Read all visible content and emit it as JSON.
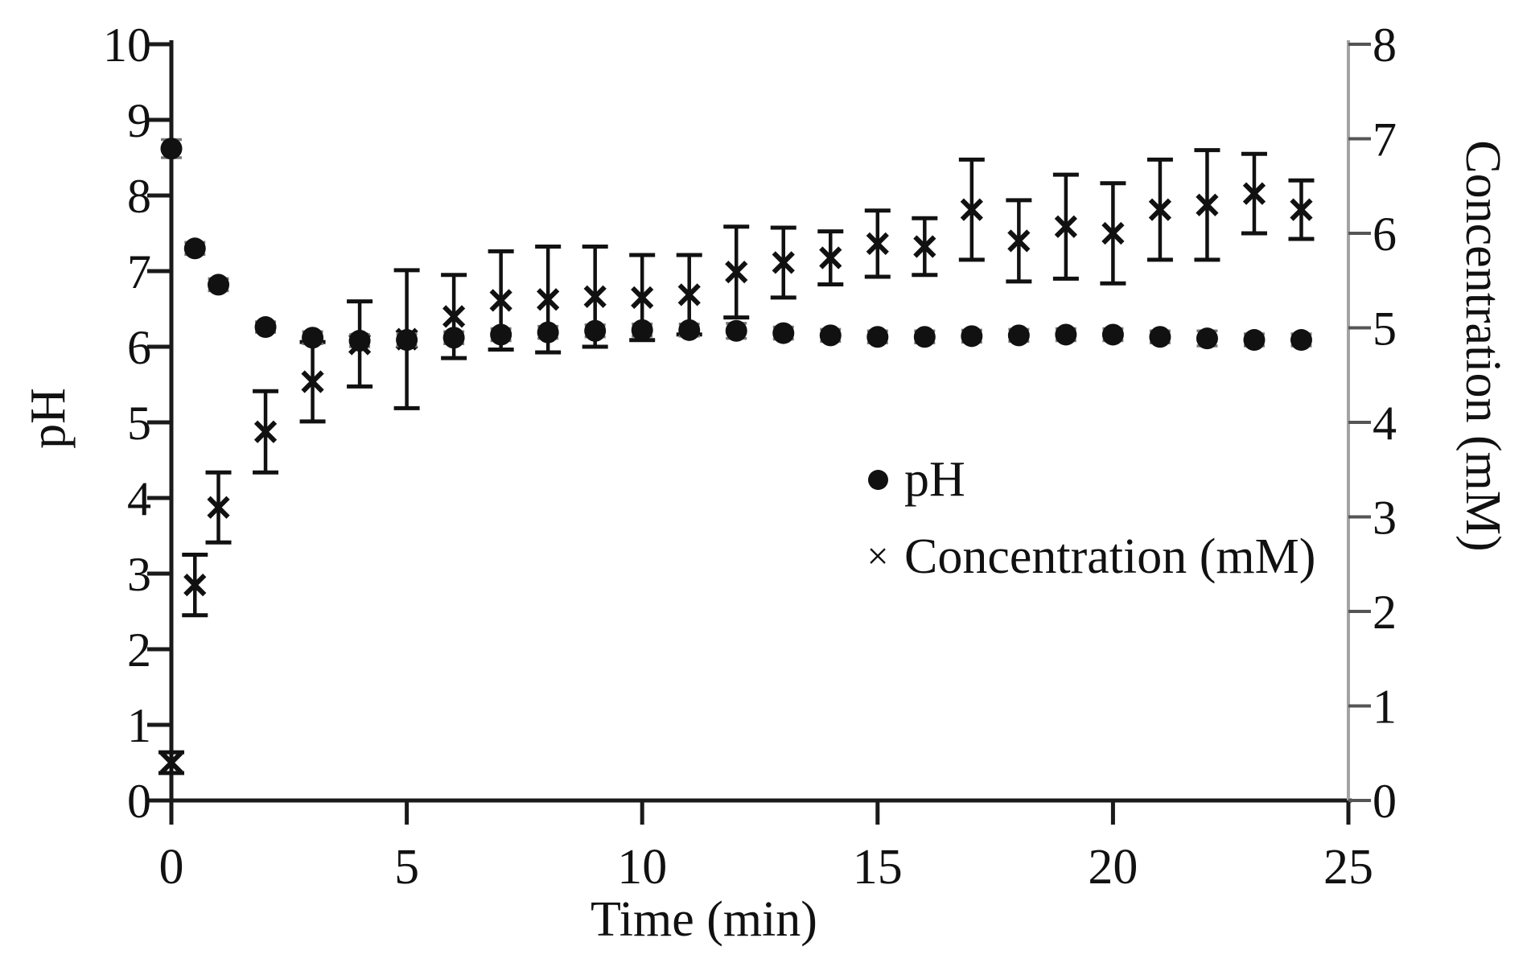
{
  "chart_data": {
    "type": "scatter",
    "title": "",
    "xlabel": "Time (min)",
    "ylabel_left": "pH",
    "ylabel_right": "Concentration (mM)",
    "x_range": [
      0,
      25
    ],
    "y_left_range": [
      0,
      10
    ],
    "y_right_range": [
      0,
      8
    ],
    "x_ticks": [
      0,
      5,
      10,
      15,
      20,
      25
    ],
    "y_left_ticks": [
      0,
      1,
      2,
      3,
      4,
      5,
      6,
      7,
      8,
      9,
      10
    ],
    "y_right_ticks": [
      0,
      1,
      2,
      3,
      4,
      5,
      6,
      7,
      8
    ],
    "grid": false,
    "legend_position": "inside-right-middle",
    "x": [
      0,
      0.5,
      1,
      2,
      3,
      4,
      5,
      6,
      7,
      8,
      9,
      10,
      11,
      12,
      13,
      14,
      15,
      16,
      17,
      18,
      19,
      20,
      21,
      22,
      23,
      24
    ],
    "series": [
      {
        "name": "pH",
        "axis": "left",
        "marker": "circle",
        "color": "#111111",
        "values": [
          8.62,
          7.3,
          6.82,
          6.26,
          6.12,
          6.08,
          6.09,
          6.12,
          6.16,
          6.19,
          6.21,
          6.22,
          6.22,
          6.21,
          6.18,
          6.15,
          6.13,
          6.13,
          6.14,
          6.15,
          6.16,
          6.16,
          6.13,
          6.11,
          6.09,
          6.09
        ],
        "errors": [
          0.12,
          0.08,
          0.08,
          0.07,
          0.08,
          0.08,
          0.08,
          0.08,
          0.08,
          0.08,
          0.08,
          0.08,
          0.08,
          0.1,
          0.08,
          0.08,
          0.08,
          0.08,
          0.08,
          0.08,
          0.08,
          0.08,
          0.08,
          0.1,
          0.08,
          0.08
        ]
      },
      {
        "name": "Concentration (mM)",
        "axis": "right",
        "marker": "x",
        "color": "#111111",
        "values": [
          0.4,
          2.28,
          3.1,
          3.9,
          4.43,
          4.83,
          4.88,
          5.12,
          5.29,
          5.3,
          5.33,
          5.32,
          5.35,
          5.59,
          5.69,
          5.74,
          5.89,
          5.86,
          6.25,
          5.92,
          6.07,
          6.0,
          6.25,
          6.3,
          6.42,
          6.25
        ],
        "errors": [
          0.11,
          0.32,
          0.37,
          0.43,
          0.42,
          0.45,
          0.73,
          0.44,
          0.52,
          0.56,
          0.53,
          0.45,
          0.42,
          0.48,
          0.37,
          0.28,
          0.35,
          0.3,
          0.53,
          0.43,
          0.55,
          0.53,
          0.53,
          0.58,
          0.42,
          0.31
        ]
      }
    ],
    "colors": {
      "marker": "#111111",
      "axis_left_bottom": "#1a1a1a",
      "axis_right": "#a3a3a3",
      "right_tick": "#555555",
      "text": "#111111"
    }
  }
}
